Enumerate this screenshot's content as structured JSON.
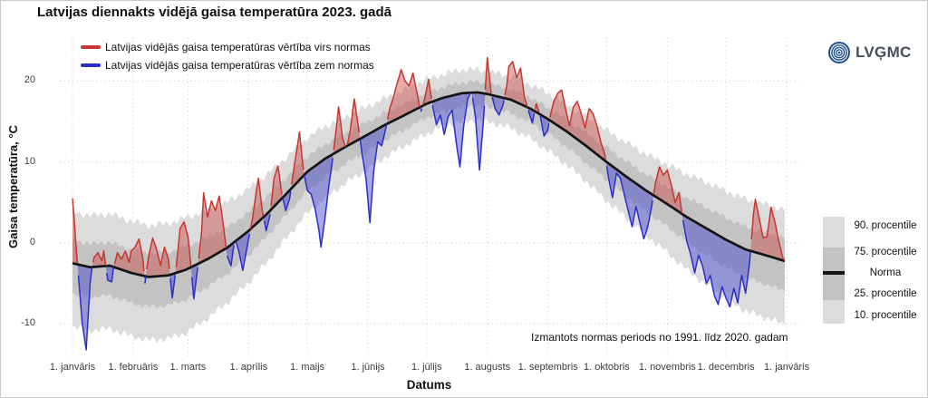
{
  "title": "Latvijas diennakts vidējā gaisa temperatūra 2023. gadā",
  "logo_text": "LVĢMC",
  "series_legend": [
    {
      "label": "Latvijas vidējās gaisa temperatūras vērtība virs normas",
      "color_key": "above_line"
    },
    {
      "label": "Latvijas vidējās gaisa temperatūras vērtība zem normas",
      "color_key": "below_line"
    }
  ],
  "colors": {
    "above_line": "#c53631",
    "above_fill": "#cd4a44",
    "below_line": "#2b2fc7",
    "below_fill": "#4347cd",
    "norm_line": "#141414",
    "band_outer": "#dcdcdc",
    "band_inner": "#c3c3c3",
    "grid": "#dadada",
    "logo_blue": "#1d4e8a",
    "logo_text": "#454f5c"
  },
  "chart_data": {
    "type": "area",
    "title": "Latvijas diennakts vidējā gaisa temperatūra 2023. gadā",
    "xlabel": "Datums",
    "ylabel": "Gaisa temperatūra, °C",
    "note": "Izmantots normas periods no 1991. līdz 2020. gadam",
    "ylim": [
      -14,
      25
    ],
    "grid": "dotted",
    "legend_position": "top-left",
    "y_ticks": [
      20,
      10,
      0,
      -10
    ],
    "x_ticks": [
      {
        "day": 1,
        "label": "1. janvāris"
      },
      {
        "day": 32,
        "label": "1. februāris"
      },
      {
        "day": 60,
        "label": "1. marts"
      },
      {
        "day": 91,
        "label": "1. aprīlis"
      },
      {
        "day": 121,
        "label": "1. maijs"
      },
      {
        "day": 152,
        "label": "1. jūnijs"
      },
      {
        "day": 182,
        "label": "1. jūlijs"
      },
      {
        "day": 213,
        "label": "1. augusts"
      },
      {
        "day": 244,
        "label": "1. septembris"
      },
      {
        "day": 274,
        "label": "1. oktobris"
      },
      {
        "day": 305,
        "label": "1. novembris"
      },
      {
        "day": 335,
        "label": "1. decembris"
      },
      {
        "day": 366,
        "label": "1. janvāris"
      }
    ],
    "right_legend": [
      "90. procentile",
      "75. procentile",
      "Norma",
      "25. procentile",
      "10. procentile"
    ],
    "norm_series": {
      "days": [
        1,
        10,
        20,
        31,
        40,
        50,
        59,
        70,
        80,
        91,
        100,
        110,
        121,
        130,
        140,
        152,
        160,
        170,
        182,
        190,
        200,
        208,
        213,
        225,
        235,
        244,
        254,
        264,
        274,
        284,
        294,
        305,
        315,
        325,
        335,
        345,
        355,
        366
      ],
      "norm": [
        -2.5,
        -3.0,
        -2.8,
        -3.7,
        -4.2,
        -4.0,
        -3.3,
        -2.0,
        -0.6,
        1.5,
        3.5,
        6.0,
        8.8,
        10.4,
        11.8,
        13.4,
        14.5,
        15.7,
        17.2,
        17.9,
        18.5,
        18.6,
        18.4,
        17.7,
        16.6,
        15.3,
        13.7,
        11.9,
        10.0,
        8.2,
        6.5,
        4.8,
        3.2,
        1.8,
        0.4,
        -0.8,
        -1.5,
        -2.3
      ],
      "p90": [
        3.9,
        3.4,
        3.6,
        2.7,
        2.2,
        2.4,
        3.1,
        4.0,
        5.0,
        6.7,
        8.4,
        10.5,
        13.0,
        14.4,
        15.5,
        16.9,
        17.8,
        18.8,
        20.2,
        20.8,
        21.4,
        21.4,
        21.2,
        20.6,
        19.6,
        18.5,
        17.1,
        15.5,
        13.9,
        12.4,
        11.0,
        9.7,
        8.5,
        7.5,
        6.4,
        5.4,
        4.8,
        4.1
      ],
      "p75": [
        0.4,
        -0.1,
        0.1,
        -0.8,
        -1.3,
        -1.1,
        -0.4,
        0.7,
        1.9,
        3.8,
        5.7,
        8.0,
        10.7,
        12.2,
        13.5,
        15.0,
        16.0,
        17.1,
        18.6,
        19.2,
        19.8,
        19.9,
        19.7,
        19.0,
        18.0,
        16.7,
        15.2,
        13.5,
        11.8,
        10.1,
        8.5,
        7.0,
        5.6,
        4.4,
        3.1,
        2.0,
        1.3,
        0.6
      ],
      "p25": [
        -6.2,
        -6.7,
        -6.5,
        -7.4,
        -7.9,
        -7.7,
        -7.0,
        -5.4,
        -3.8,
        -1.5,
        0.7,
        3.4,
        6.4,
        8.1,
        9.7,
        11.4,
        12.6,
        13.9,
        15.5,
        16.2,
        16.8,
        17.0,
        16.8,
        16.0,
        14.9,
        13.5,
        11.8,
        9.8,
        7.8,
        5.8,
        3.9,
        2.0,
        0.2,
        -1.5,
        -3.0,
        -4.3,
        -5.1,
        -6.0
      ],
      "p10": [
        -10.3,
        -10.8,
        -10.6,
        -11.5,
        -12.0,
        -11.8,
        -11.1,
        -9.3,
        -7.4,
        -4.9,
        -2.5,
        0.5,
        3.7,
        5.5,
        7.3,
        9.1,
        10.5,
        11.9,
        13.5,
        14.4,
        15.0,
        15.2,
        15.0,
        14.2,
        12.9,
        11.4,
        9.6,
        7.5,
        5.2,
        3.1,
        1.0,
        -1.2,
        -3.3,
        -5.2,
        -6.9,
        -8.4,
        -9.2,
        -10.1
      ]
    },
    "temperature_2023_daily_mean": [
      [
        1,
        5.5
      ],
      [
        2,
        2.5
      ],
      [
        3,
        -1.0
      ],
      [
        4,
        -4.0
      ],
      [
        5,
        -7.0
      ],
      [
        6,
        -10.0
      ],
      [
        8,
        -13.2
      ],
      [
        9,
        -9.0
      ],
      [
        10,
        -5.0
      ],
      [
        11,
        -3.0
      ],
      [
        12,
        -1.8
      ],
      [
        14,
        -1.2
      ],
      [
        16,
        -2.2
      ],
      [
        17,
        -1.0
      ],
      [
        19,
        -4.6
      ],
      [
        21,
        -4.8
      ],
      [
        22,
        -3.0
      ],
      [
        24,
        -1.2
      ],
      [
        26,
        -2.0
      ],
      [
        28,
        -1.0
      ],
      [
        30,
        -2.4
      ],
      [
        31,
        -1.0
      ],
      [
        33,
        -0.5
      ],
      [
        35,
        0.5
      ],
      [
        37,
        -2.0
      ],
      [
        38,
        -5.0
      ],
      [
        40,
        -1.5
      ],
      [
        42,
        0.6
      ],
      [
        44,
        -0.8
      ],
      [
        46,
        -2.8
      ],
      [
        48,
        -0.5
      ],
      [
        50,
        -2.0
      ],
      [
        52,
        -6.8
      ],
      [
        54,
        -3.0
      ],
      [
        56,
        1.8
      ],
      [
        58,
        2.6
      ],
      [
        60,
        0.8
      ],
      [
        61,
        -1.5
      ],
      [
        63,
        -6.9
      ],
      [
        65,
        -3.0
      ],
      [
        67,
        1.4
      ],
      [
        68,
        6.2
      ],
      [
        70,
        3.2
      ],
      [
        72,
        5.2
      ],
      [
        74,
        4.0
      ],
      [
        76,
        5.8
      ],
      [
        78,
        2.4
      ],
      [
        80,
        -1.6
      ],
      [
        82,
        -2.8
      ],
      [
        84,
        0.6
      ],
      [
        86,
        -1.0
      ],
      [
        88,
        -3.4
      ],
      [
        90,
        -0.8
      ],
      [
        91,
        0.5
      ],
      [
        93,
        3.0
      ],
      [
        95,
        6.5
      ],
      [
        96,
        8.0
      ],
      [
        98,
        4.0
      ],
      [
        100,
        1.5
      ],
      [
        102,
        3.5
      ],
      [
        104,
        8.0
      ],
      [
        106,
        9.5
      ],
      [
        108,
        6.0
      ],
      [
        110,
        4.0
      ],
      [
        112,
        5.5
      ],
      [
        114,
        9.0
      ],
      [
        116,
        12.0
      ],
      [
        117,
        13.7
      ],
      [
        119,
        9.0
      ],
      [
        121,
        6.5
      ],
      [
        123,
        6.0
      ],
      [
        125,
        4.2
      ],
      [
        127,
        1.5
      ],
      [
        128,
        -0.5
      ],
      [
        130,
        3.0
      ],
      [
        132,
        7.0
      ],
      [
        134,
        10.5
      ],
      [
        136,
        14.5
      ],
      [
        137,
        16.8
      ],
      [
        139,
        13.0
      ],
      [
        141,
        11.5
      ],
      [
        143,
        14.0
      ],
      [
        145,
        17.8
      ],
      [
        147,
        14.5
      ],
      [
        149,
        11.0
      ],
      [
        151,
        8.0
      ],
      [
        153,
        2.5
      ],
      [
        155,
        9.0
      ],
      [
        157,
        12.5
      ],
      [
        159,
        12.0
      ],
      [
        161,
        14.0
      ],
      [
        163,
        16.5
      ],
      [
        165,
        18.0
      ],
      [
        167,
        19.8
      ],
      [
        169,
        21.4
      ],
      [
        171,
        20.0
      ],
      [
        173,
        19.4
      ],
      [
        175,
        21.0
      ],
      [
        177,
        18.6
      ],
      [
        179,
        16.2
      ],
      [
        181,
        17.8
      ],
      [
        183,
        20.2
      ],
      [
        185,
        17.0
      ],
      [
        187,
        14.6
      ],
      [
        189,
        15.8
      ],
      [
        191,
        13.4
      ],
      [
        193,
        15.6
      ],
      [
        195,
        16.4
      ],
      [
        197,
        12.6
      ],
      [
        199,
        9.4
      ],
      [
        201,
        14.6
      ],
      [
        203,
        17.8
      ],
      [
        205,
        18.8
      ],
      [
        207,
        15.4
      ],
      [
        209,
        9.0
      ],
      [
        211,
        15.0
      ],
      [
        213,
        22.9
      ],
      [
        215,
        18.5
      ],
      [
        217,
        16.6
      ],
      [
        219,
        15.8
      ],
      [
        221,
        17.0
      ],
      [
        223,
        19.5
      ],
      [
        224,
        21.8
      ],
      [
        226,
        22.4
      ],
      [
        228,
        20.4
      ],
      [
        230,
        21.6
      ],
      [
        232,
        18.0
      ],
      [
        234,
        16.4
      ],
      [
        236,
        14.8
      ],
      [
        238,
        17.2
      ],
      [
        240,
        15.8
      ],
      [
        242,
        13.2
      ],
      [
        244,
        14.0
      ],
      [
        245,
        15.5
      ],
      [
        247,
        17.5
      ],
      [
        249,
        18.5
      ],
      [
        251,
        18.9
      ],
      [
        253,
        16.5
      ],
      [
        255,
        14.5
      ],
      [
        257,
        16.8
      ],
      [
        259,
        17.5
      ],
      [
        261,
        16.0
      ],
      [
        263,
        14.2
      ],
      [
        265,
        16.6
      ],
      [
        267,
        16.0
      ],
      [
        269,
        14.5
      ],
      [
        271,
        12.5
      ],
      [
        273,
        11.0
      ],
      [
        275,
        8.0
      ],
      [
        277,
        5.6
      ],
      [
        279,
        8.6
      ],
      [
        281,
        8.0
      ],
      [
        283,
        6.0
      ],
      [
        285,
        4.0
      ],
      [
        287,
        2.0
      ],
      [
        289,
        4.5
      ],
      [
        291,
        2.5
      ],
      [
        293,
        0.5
      ],
      [
        295,
        2.0
      ],
      [
        297,
        4.5
      ],
      [
        299,
        7.5
      ],
      [
        301,
        9.4
      ],
      [
        303,
        8.4
      ],
      [
        305,
        9.0
      ],
      [
        307,
        7.2
      ],
      [
        309,
        5.0
      ],
      [
        311,
        6.2
      ],
      [
        313,
        2.8
      ],
      [
        315,
        0.2
      ],
      [
        317,
        -1.5
      ],
      [
        319,
        -3.7
      ],
      [
        321,
        -1.5
      ],
      [
        323,
        -2.8
      ],
      [
        325,
        -5.0
      ],
      [
        327,
        -4.0
      ],
      [
        329,
        -6.5
      ],
      [
        331,
        -7.6
      ],
      [
        333,
        -5.4
      ],
      [
        335,
        -6.8
      ],
      [
        337,
        -7.9
      ],
      [
        339,
        -5.6
      ],
      [
        341,
        -7.4
      ],
      [
        343,
        -4.0
      ],
      [
        345,
        -6.2
      ],
      [
        347,
        -2.6
      ],
      [
        349,
        3.5
      ],
      [
        350,
        5.4
      ],
      [
        352,
        3.0
      ],
      [
        354,
        0.6
      ],
      [
        356,
        0.8
      ],
      [
        358,
        4.4
      ],
      [
        360,
        2.6
      ],
      [
        362,
        0.2
      ],
      [
        364,
        -1.8
      ],
      [
        365,
        -2.2
      ]
    ]
  }
}
